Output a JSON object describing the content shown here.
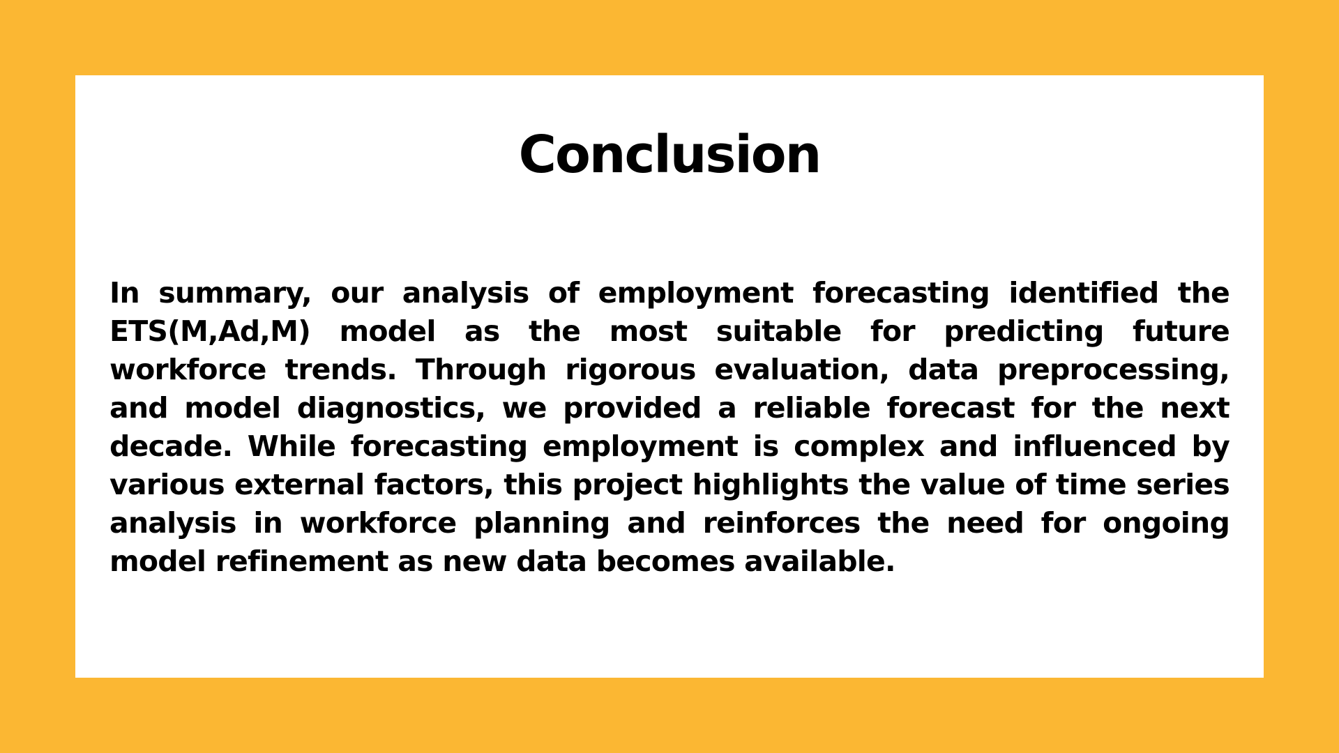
{
  "slide": {
    "title": "Conclusion",
    "body": "In summary, our analysis of employment forecasting identified the ETS(M,Ad,M) model as the most suitable for predicting future workforce trends. Through rigorous evaluation, data preprocessing, and model diagnostics, we provided a reliable forecast for the next decade. While forecasting employment is complex and influenced by various external factors, this project highlights the value of time series analysis in workforce planning and reinforces the need for ongoing model refinement as new data becomes available."
  },
  "colors": {
    "background": "#fbb733",
    "card": "#ffffff",
    "text": "#000000"
  }
}
